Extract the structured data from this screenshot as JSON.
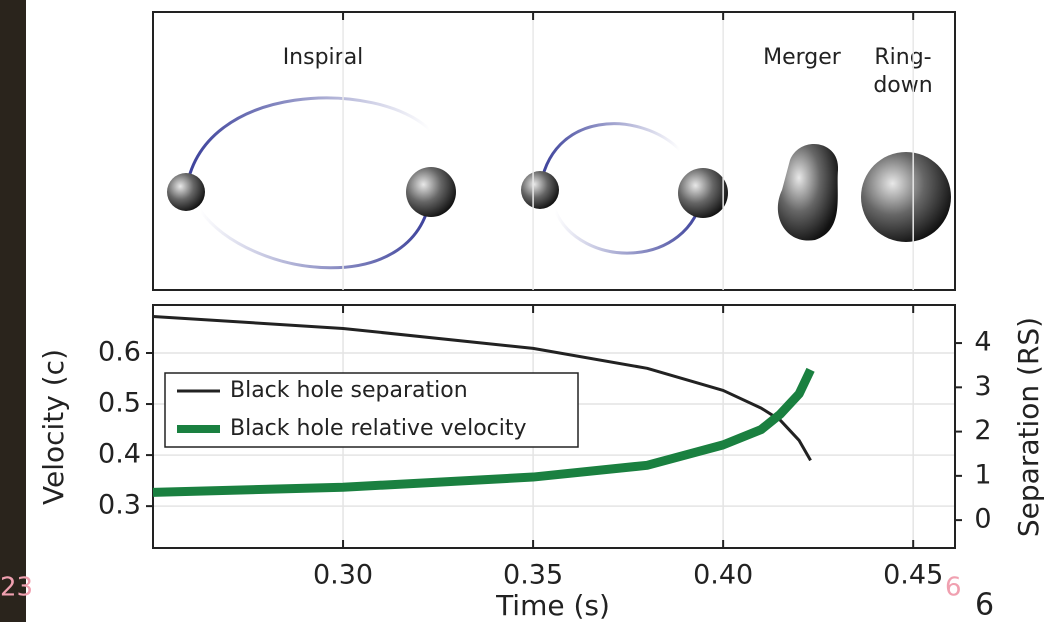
{
  "slide": {
    "page_left": "23",
    "page_right": "6",
    "page_number": "6"
  },
  "panel": {
    "labels": [
      "Inspiral",
      "Merger",
      "Ring-",
      "down"
    ]
  },
  "chart_data": {
    "type": "line",
    "xlabel": "Time (s)",
    "ylabel": "Velocity (c)",
    "y2label": "Separation (RS)",
    "x": [
      0.25,
      0.3,
      0.35,
      0.38,
      0.4,
      0.41,
      0.415,
      0.42,
      0.423
    ],
    "series": [
      {
        "name": "Black hole separation",
        "color": "#222222",
        "axis": "y2",
        "values": [
          4.6,
          4.33,
          3.88,
          3.43,
          2.93,
          2.53,
          2.26,
          1.8,
          1.35
        ]
      },
      {
        "name": "Black hole relative velocity",
        "color": "#1a8040",
        "values": [
          0.327,
          0.337,
          0.357,
          0.38,
          0.42,
          0.45,
          0.48,
          0.52,
          0.567
        ]
      }
    ],
    "xlim": [
      0.25,
      0.461
    ],
    "xticks": [
      {
        "value": 0.3,
        "label": "0.30"
      },
      0.35,
      {
        "value": 0.4,
        "label": "0.40"
      },
      0.45
    ],
    "ylim": [
      0.218,
      0.694
    ],
    "yticks": [
      0.3,
      0.4,
      0.5,
      0.6
    ],
    "y2lim": [
      -0.63,
      4.86
    ],
    "y2ticks": [
      0,
      1,
      2,
      3,
      4
    ],
    "grid": true,
    "legend": "upper left"
  }
}
